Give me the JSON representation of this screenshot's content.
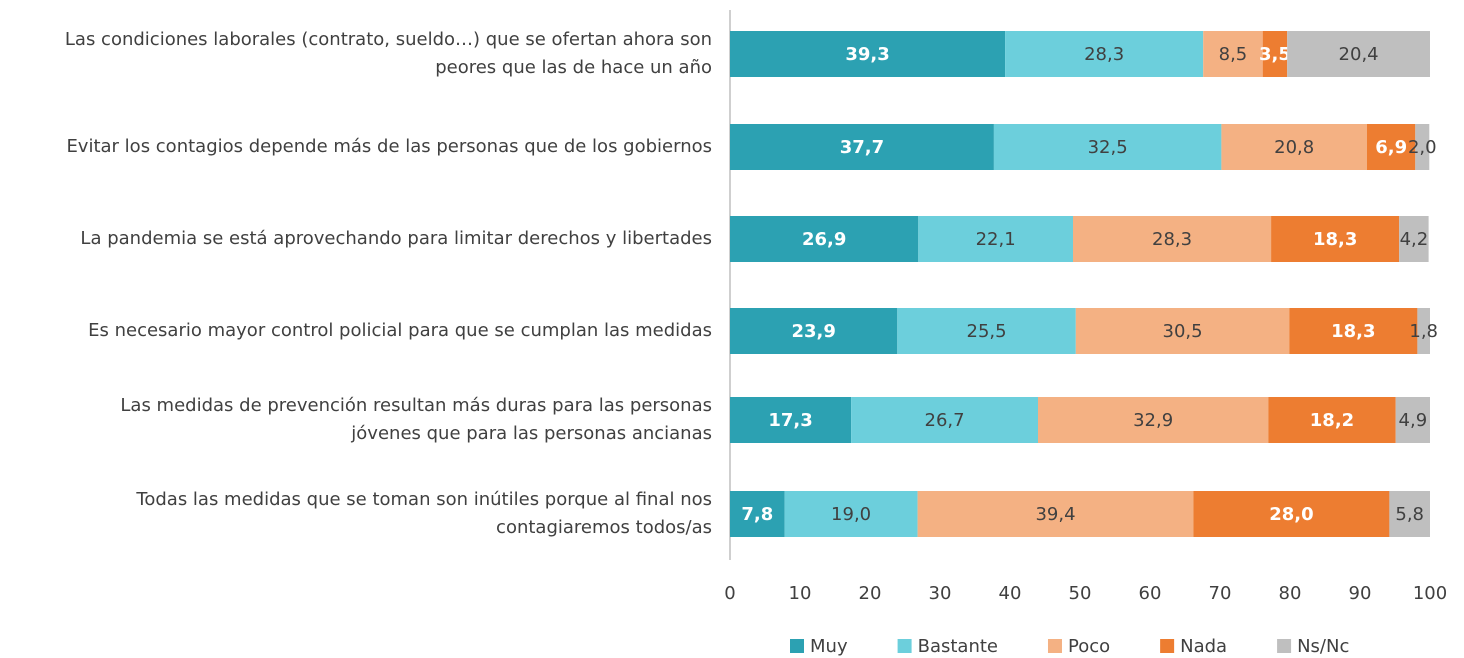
{
  "chart_data": {
    "type": "stacked_barh",
    "categories": [
      "Las condiciones laborales (contrato, sueldo…) que se ofertan ahora son\npeores que las de hace un año",
      "Evitar los contagios depende más de las personas que de los gobiernos",
      "La pandemia se está aprovechando para limitar derechos y libertades",
      "Es necesario mayor control policial para que se cumplan las medidas",
      "Las medidas de prevención resultan más duras para las personas\njóvenes que para las personas ancianas",
      "Todas las medidas que se toman son inútiles porque al final nos\ncontagiaremos todos/as"
    ],
    "series": [
      {
        "name": "Muy",
        "color": "#2ca1b2",
        "label_color": "#ffffff",
        "values": [
          39.3,
          37.7,
          26.9,
          23.9,
          17.3,
          7.8
        ],
        "value_labels": [
          "39,3",
          "37,7",
          "26,9",
          "23,9",
          "17,3",
          "7,8"
        ]
      },
      {
        "name": "Bastante",
        "color": "#6ccfdc",
        "label_color": "#404040",
        "values": [
          28.3,
          32.5,
          22.1,
          25.5,
          26.7,
          19.0
        ],
        "value_labels": [
          "28,3",
          "32,5",
          "22,1",
          "25,5",
          "26,7",
          "19,0"
        ]
      },
      {
        "name": "Poco",
        "color": "#f4b183",
        "label_color": "#404040",
        "values": [
          8.5,
          20.8,
          28.3,
          30.5,
          32.9,
          39.4
        ],
        "value_labels": [
          "8,5",
          "20,8",
          "28,3",
          "30,5",
          "32,9",
          "39,4"
        ]
      },
      {
        "name": "Nada",
        "color": "#ed7d31",
        "label_color": "#ffffff",
        "values": [
          3.5,
          6.9,
          18.3,
          18.3,
          18.2,
          28.0
        ],
        "value_labels": [
          "3,5",
          "6,9",
          "18,3",
          "18,3",
          "18,2",
          "28,0"
        ]
      },
      {
        "name": "Ns/Nc",
        "color": "#bfbfbf",
        "label_color": "#404040",
        "values": [
          20.4,
          2.0,
          4.2,
          1.8,
          4.9,
          5.8
        ],
        "value_labels": [
          "20,4",
          "2,0",
          "4,2",
          "1,8",
          "4,9",
          "5,8"
        ]
      }
    ],
    "xlim": [
      0,
      100
    ],
    "xticks": [
      0,
      10,
      20,
      30,
      40,
      50,
      60,
      70,
      80,
      90,
      100
    ],
    "legend": "bottom"
  }
}
